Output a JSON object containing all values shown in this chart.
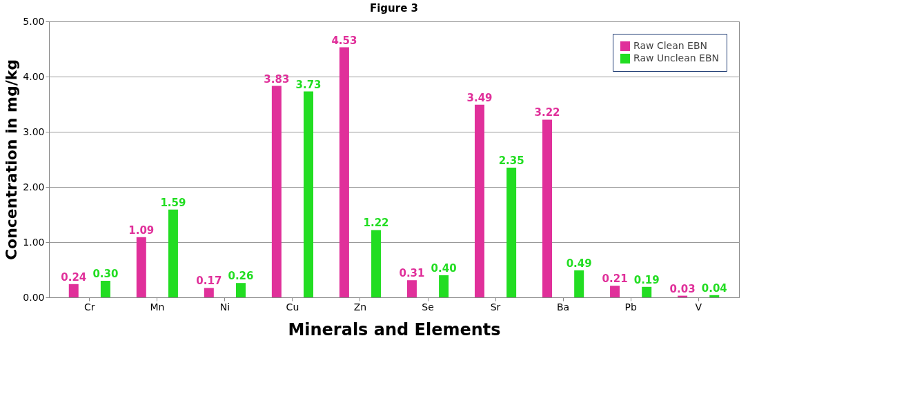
{
  "chart_data": {
    "type": "bar",
    "title": "Figure 3",
    "xlabel": "Minerals and Elements",
    "ylabel": "Concentration in mg/kg",
    "categories": [
      "Cr",
      "Mn",
      "Ni",
      "Cu",
      "Zn",
      "Se",
      "Sr",
      "Ba",
      "Pb",
      "V"
    ],
    "series": [
      {
        "name": "Raw Clean EBN",
        "color": "#e0309a",
        "values": [
          0.24,
          1.09,
          0.17,
          3.83,
          4.53,
          0.31,
          3.49,
          3.22,
          0.21,
          0.03
        ],
        "value_labels": [
          "0.24",
          "1.09",
          "0.17",
          "3.83",
          "4.53",
          "0.31",
          "3.49",
          "3.22",
          "0.21",
          "0.03"
        ]
      },
      {
        "name": "Raw Unclean EBN",
        "color": "#22dd22",
        "values": [
          0.3,
          1.59,
          0.26,
          3.73,
          1.22,
          0.4,
          2.35,
          0.49,
          0.19,
          0.04
        ],
        "value_labels": [
          "0.30",
          "1.59",
          "0.26",
          "3.73",
          "1.22",
          "0.40",
          "2.35",
          "0.49",
          "0.19",
          "0.04"
        ]
      }
    ],
    "ylim": [
      0,
      5
    ],
    "yticks": [
      {
        "value": 0,
        "label": "0.00"
      },
      {
        "value": 1,
        "label": "1.00"
      },
      {
        "value": 2,
        "label": "2.00"
      },
      {
        "value": 3,
        "label": "3.00"
      },
      {
        "value": 4,
        "label": "4.00"
      },
      {
        "value": 5,
        "label": "5.00"
      }
    ],
    "grid": "y",
    "legend": "top right"
  }
}
